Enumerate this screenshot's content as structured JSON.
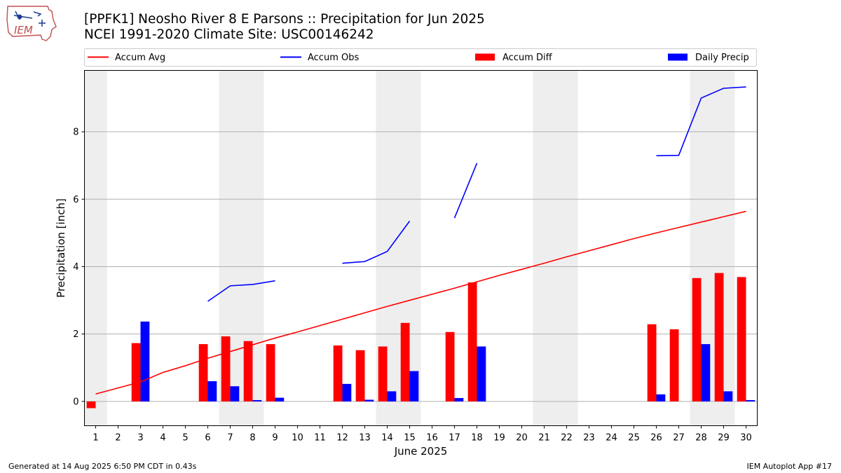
{
  "header": {
    "title_line1": "[PPFK1] Neosho River 8 E Parsons :: Precipitation for Jun 2025",
    "title_line2": "NCEI 1991-2020 Climate Site: USC00146242",
    "logo_text": "IEM"
  },
  "footer": {
    "left": "Generated at 14 Aug 2025 6:50 PM CDT in 0.43s",
    "right": "IEM Autoplot App #17"
  },
  "colors": {
    "avg": "#ff0000",
    "obs": "#0000ff",
    "diff": "#ff0000",
    "daily": "#0000ff",
    "weekend_shade": "#eeeeee",
    "grid": "#b0b0b0"
  },
  "chart_data": {
    "type": "bar",
    "xlabel": "June 2025",
    "ylabel": "Precipitation [inch]",
    "ylim": [
      -0.72,
      9.82
    ],
    "xlim": [
      0.5,
      30.5
    ],
    "yticks": [
      0,
      2,
      4,
      6,
      8
    ],
    "grid": "horizontal",
    "legend_placement": "top",
    "categories": [
      "1",
      "2",
      "3",
      "4",
      "5",
      "6",
      "7",
      "8",
      "9",
      "10",
      "11",
      "12",
      "13",
      "14",
      "15",
      "16",
      "17",
      "18",
      "19",
      "20",
      "21",
      "22",
      "23",
      "24",
      "25",
      "26",
      "27",
      "28",
      "29",
      "30"
    ],
    "shaded_days": [
      1,
      7,
      8,
      14,
      15,
      21,
      22,
      28,
      29
    ],
    "series": [
      {
        "name": "Accum Avg",
        "type": "line",
        "color": "#ff0000",
        "values": [
          0.22,
          0.4,
          0.58,
          0.86,
          1.06,
          1.28,
          1.48,
          1.68,
          1.88,
          2.06,
          2.25,
          2.44,
          2.63,
          2.82,
          3.0,
          3.18,
          3.36,
          3.55,
          3.74,
          3.92,
          4.1,
          4.29,
          4.47,
          4.65,
          4.83,
          5.0,
          5.16,
          5.32,
          5.48,
          5.64
        ]
      },
      {
        "name": "Accum Obs",
        "type": "line",
        "color": "#0000ff",
        "values": [
          null,
          null,
          null,
          null,
          null,
          2.97,
          3.43,
          3.47,
          3.58,
          null,
          null,
          4.1,
          4.15,
          4.45,
          5.35,
          null,
          5.44,
          7.07,
          null,
          null,
          null,
          null,
          null,
          null,
          null,
          7.29,
          7.3,
          9.0,
          9.29,
          9.33
        ]
      },
      {
        "name": "Accum Diff",
        "type": "bar",
        "color": "#ff0000",
        "values": [
          -0.2,
          null,
          1.73,
          null,
          null,
          1.7,
          1.93,
          1.79,
          1.7,
          null,
          null,
          1.66,
          1.52,
          1.63,
          2.33,
          null,
          2.06,
          3.53,
          null,
          null,
          null,
          null,
          null,
          null,
          null,
          2.29,
          2.14,
          3.66,
          3.81,
          3.69
        ]
      },
      {
        "name": "Daily Precip",
        "type": "bar",
        "color": "#0000ff",
        "values": [
          null,
          null,
          2.37,
          null,
          null,
          0.6,
          0.45,
          0.04,
          0.11,
          null,
          null,
          0.52,
          0.05,
          0.3,
          0.9,
          null,
          0.1,
          1.63,
          null,
          null,
          null,
          null,
          null,
          null,
          null,
          0.21,
          null,
          1.7,
          0.3,
          0.04
        ]
      }
    ]
  }
}
